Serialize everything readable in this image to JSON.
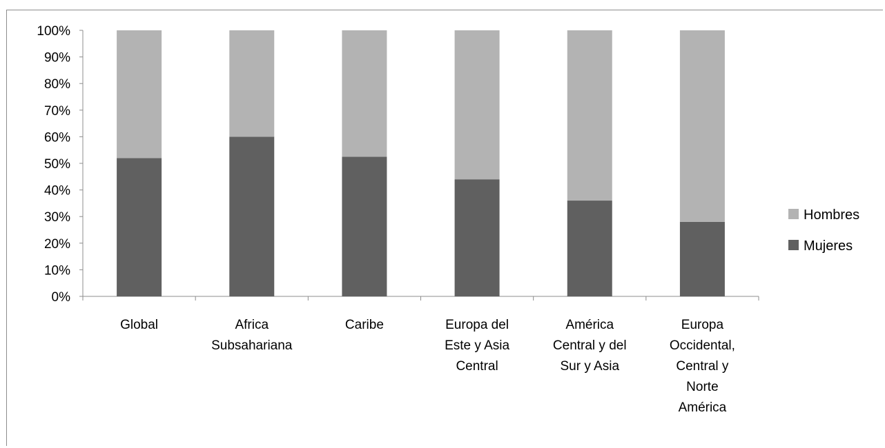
{
  "chart_data": {
    "type": "bar",
    "stacked": true,
    "percent_stacked": true,
    "categories": [
      [
        "Global"
      ],
      [
        "Africa",
        "Subsahariana"
      ],
      [
        "Caribe"
      ],
      [
        "Europa del",
        "Este y Asia",
        "Central"
      ],
      [
        "América",
        "Central y del",
        "Sur y Asia"
      ],
      [
        "Europa",
        "Occidental,",
        "Central y",
        "Norte",
        "América"
      ]
    ],
    "series": [
      {
        "name": "Mujeres",
        "color": "#606060",
        "values": [
          52,
          60,
          52.5,
          44,
          36,
          28
        ]
      },
      {
        "name": "Hombres",
        "color": "#b3b3b3",
        "values": [
          48,
          40,
          47.5,
          56,
          64,
          72
        ]
      }
    ],
    "y_ticks": [
      "0%",
      "10%",
      "20%",
      "30%",
      "40%",
      "50%",
      "60%",
      "70%",
      "80%",
      "90%",
      "100%"
    ],
    "ylim": [
      0,
      100
    ],
    "grid": false,
    "legend": {
      "position": "right",
      "order": [
        "Hombres",
        "Mujeres"
      ]
    }
  }
}
